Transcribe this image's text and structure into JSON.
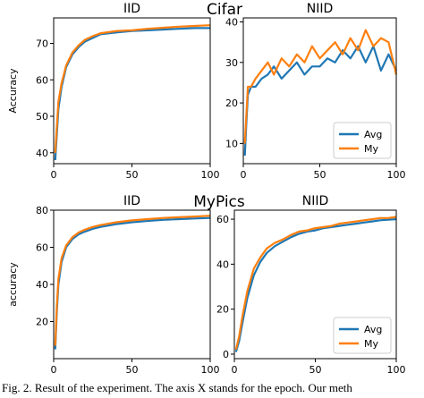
{
  "figure": {
    "row_titles": [
      "Cifar",
      "MyPics"
    ],
    "caption": "Fig. 2.  Result of the experiment. The axis X stands for the epoch. Our meth"
  },
  "colors": {
    "Avg": "#1f77b4",
    "My": "#ff7f0e"
  },
  "chart_data": [
    {
      "type": "line",
      "title": "IID",
      "xlabel": "",
      "ylabel": "Accuracy",
      "xlim": [
        0,
        100
      ],
      "ylim": [
        37,
        77
      ],
      "xticks": [
        0,
        50,
        100
      ],
      "yticks": [
        40,
        50,
        60,
        70
      ],
      "x": [
        1,
        2,
        3,
        5,
        8,
        12,
        16,
        20,
        25,
        30,
        40,
        50,
        60,
        70,
        80,
        90,
        100
      ],
      "series": [
        {
          "name": "Avg",
          "values": [
            38,
            45,
            52,
            58,
            63.5,
            67,
            69,
            70.5,
            71.5,
            72.5,
            73,
            73.4,
            73.6,
            73.8,
            74,
            74.2,
            74.2
          ]
        },
        {
          "name": "My",
          "values": [
            40,
            47,
            54,
            59,
            64,
            67.5,
            69.5,
            71,
            72,
            72.8,
            73.4,
            73.6,
            74,
            74.3,
            74.6,
            74.8,
            75
          ]
        }
      ]
    },
    {
      "type": "line",
      "title": "NIID",
      "xlabel": "",
      "ylabel": "",
      "xlim": [
        0,
        100
      ],
      "ylim": [
        5,
        41
      ],
      "xticks": [
        0,
        50,
        100
      ],
      "yticks": [
        10,
        20,
        30,
        40
      ],
      "legend": "lower-right",
      "x": [
        1,
        2,
        3,
        5,
        8,
        12,
        16,
        20,
        25,
        30,
        35,
        40,
        45,
        50,
        55,
        60,
        65,
        70,
        75,
        80,
        85,
        90,
        95,
        100
      ],
      "series": [
        {
          "name": "Avg",
          "values": [
            7,
            15,
            22,
            24,
            24,
            26,
            27,
            29,
            26,
            28,
            30,
            27,
            29,
            29,
            31,
            30,
            33,
            31,
            34,
            30,
            34,
            28,
            32,
            28
          ]
        },
        {
          "name": "My",
          "values": [
            10,
            17,
            24,
            24,
            26,
            28,
            30,
            27,
            31,
            29,
            32,
            30,
            34,
            31,
            33,
            35,
            32,
            36,
            33,
            38,
            34,
            36,
            35,
            27
          ]
        }
      ]
    },
    {
      "type": "line",
      "title": "IID",
      "xlabel": "",
      "ylabel": "accuracy",
      "xlim": [
        0,
        100
      ],
      "ylim": [
        0,
        80
      ],
      "xticks": [
        0,
        50,
        100
      ],
      "yticks": [
        20,
        40,
        60,
        80
      ],
      "x": [
        1,
        2,
        3,
        5,
        8,
        12,
        16,
        20,
        25,
        30,
        40,
        50,
        60,
        70,
        80,
        90,
        100
      ],
      "series": [
        {
          "name": "Avg",
          "values": [
            5,
            25,
            40,
            52,
            60,
            64.5,
            67,
            68.5,
            70,
            71,
            72.5,
            73.5,
            74.2,
            74.8,
            75.2,
            75.5,
            75.8
          ]
        },
        {
          "name": "My",
          "values": [
            7,
            28,
            43,
            54,
            61,
            65.5,
            68,
            69.5,
            71,
            72,
            73.5,
            74.5,
            75.2,
            75.8,
            76.2,
            76.6,
            77
          ]
        }
      ]
    },
    {
      "type": "line",
      "title": "NIID",
      "xlabel": "",
      "ylabel": "",
      "xlim": [
        0,
        100
      ],
      "ylim": [
        -2,
        64
      ],
      "xticks": [
        0,
        50,
        100
      ],
      "yticks": [
        0,
        20,
        40,
        60
      ],
      "legend": "lower-right",
      "x": [
        1,
        3,
        5,
        8,
        12,
        16,
        20,
        25,
        30,
        35,
        40,
        45,
        50,
        55,
        60,
        65,
        70,
        75,
        80,
        85,
        90,
        95,
        100
      ],
      "series": [
        {
          "name": "Avg",
          "values": [
            1,
            6,
            14,
            25,
            35,
            41,
            45,
            48,
            50,
            52,
            53.5,
            54.5,
            55,
            56,
            56.5,
            57,
            57.5,
            58,
            58.5,
            59,
            59.5,
            59.8,
            60
          ]
        },
        {
          "name": "My",
          "values": [
            2,
            8,
            17,
            28,
            38,
            43,
            47,
            49.5,
            51,
            53,
            54.5,
            55,
            56,
            56.5,
            57,
            58,
            58.5,
            59,
            59.5,
            60,
            60.5,
            60.5,
            61
          ]
        }
      ]
    }
  ]
}
